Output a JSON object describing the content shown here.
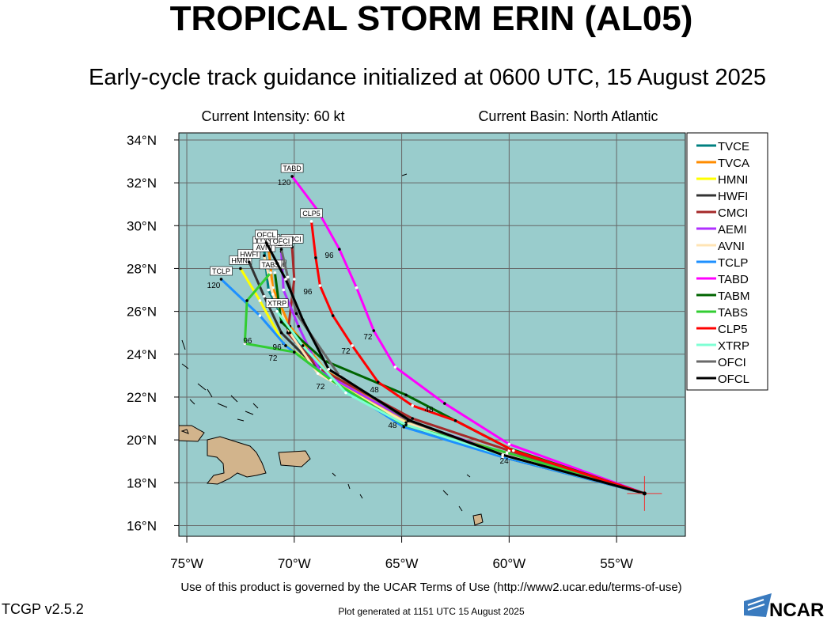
{
  "header": {
    "title": "TROPICAL STORM ERIN (AL05)",
    "subtitle": "Early-cycle track guidance initialized at 0600 UTC, 15 August 2025",
    "intensity": "Current Intensity: 60 kt",
    "basin": "Current Basin: North Atlantic"
  },
  "map": {
    "lonlim": [
      -75.37,
      -51.8
    ],
    "latlim": [
      15.5,
      34.33
    ],
    "lonticks": [
      {
        "value": -75,
        "label": "75°W"
      },
      {
        "value": -70,
        "label": "70°W"
      },
      {
        "value": -65,
        "label": "65°W"
      },
      {
        "value": -60,
        "label": "60°W"
      },
      {
        "value": -55,
        "label": "55°W"
      }
    ],
    "latticks": [
      {
        "value": 16,
        "label": "16°N"
      },
      {
        "value": 18,
        "label": "18°N"
      },
      {
        "value": 20,
        "label": "20°N"
      },
      {
        "value": 22,
        "label": "22°N"
      },
      {
        "value": 24,
        "label": "24°N"
      },
      {
        "value": 26,
        "label": "26°N"
      },
      {
        "value": 28,
        "label": "28°N"
      },
      {
        "value": 30,
        "label": "30°N"
      },
      {
        "value": 32,
        "label": "32°N"
      },
      {
        "value": 34,
        "label": "34°N"
      }
    ],
    "grid": true,
    "initial_position": {
      "lon": -53.7,
      "lat": 17.5
    },
    "tracks": [
      {
        "name": "TVCE",
        "color": "#008080",
        "lon": [
          -53.7,
          -60.2,
          -64.8,
          -68.6,
          -70.3,
          -71.2,
          -71.4
        ],
        "lat": [
          17.5,
          19.3,
          20.8,
          23.1,
          25.2,
          27.0,
          28.9
        ]
      },
      {
        "name": "TVCA",
        "color": "#ff8c00",
        "lon": [
          -53.7,
          -60.1,
          -64.7,
          -68.5,
          -70.2,
          -71.0,
          -71.2
        ],
        "lat": [
          17.5,
          19.35,
          20.85,
          23.2,
          25.3,
          27.1,
          29.0
        ]
      },
      {
        "name": "HMNI",
        "color": "#ffff00",
        "lon": [
          -53.7,
          -60.2,
          -64.7,
          -68.2,
          -70.5,
          -71.6,
          -72.5
        ],
        "lat": [
          17.5,
          19.3,
          20.8,
          22.8,
          24.5,
          26.5,
          28.0
        ]
      },
      {
        "name": "HWFI",
        "color": "#333333",
        "lon": [
          -53.7,
          -60.3,
          -64.9,
          -68.5,
          -70.6,
          -71.4,
          -72.1
        ],
        "lat": [
          17.5,
          19.2,
          20.7,
          22.9,
          25.0,
          26.7,
          28.3
        ]
      },
      {
        "name": "CMCI",
        "color": "#a52a2a",
        "lon": [
          -53.7,
          -60.0,
          -64.5,
          -68.8,
          -70.3,
          -70.0,
          -70.1
        ],
        "lat": [
          17.5,
          19.5,
          21.0,
          23.3,
          25.0,
          27.5,
          29.0
        ]
      },
      {
        "name": "AEMI",
        "color": "#b030ff",
        "lon": [
          -53.7,
          -60.1,
          -64.7,
          -68.8,
          -69.8,
          -70.5,
          -70.6
        ],
        "lat": [
          17.5,
          19.3,
          20.9,
          23.2,
          25.3,
          27.0,
          28.8
        ]
      },
      {
        "name": "AVNI",
        "color": "#ffe4b5",
        "lon": [
          -53.7,
          -60.2,
          -64.8,
          -68.9,
          -70.2,
          -71.0,
          -71.4
        ],
        "lat": [
          17.5,
          19.3,
          20.8,
          23.1,
          25.0,
          26.8,
          28.6
        ]
      },
      {
        "name": "TCLP",
        "color": "#1e90ff",
        "lon": [
          -53.7,
          -60.3,
          -64.9,
          -68.0,
          -70.4,
          -71.6,
          -73.4
        ],
        "lat": [
          17.5,
          19.2,
          20.6,
          22.6,
          24.4,
          25.8,
          27.5
        ]
      },
      {
        "name": "TABD",
        "color": "#ff00ff",
        "lon": [
          -53.7,
          -60.0,
          -63.0,
          -65.3,
          -66.3,
          -67.1,
          -67.9,
          -68.9,
          -70.1
        ],
        "lat": [
          17.5,
          19.8,
          21.7,
          23.4,
          25.1,
          27.1,
          28.9,
          30.7,
          32.3
        ]
      },
      {
        "name": "TABM",
        "color": "#006400",
        "lon": [
          -53.7,
          -60.0,
          -64.8,
          -68.6,
          -70.6,
          -70.9
        ],
        "lat": [
          17.5,
          19.6,
          22.1,
          23.7,
          25.5,
          27.8
        ]
      },
      {
        "name": "TABS",
        "color": "#32cd32",
        "lon": [
          -53.7,
          -60.1,
          -64.9,
          -68.3,
          -70.0,
          -72.3,
          -72.2,
          -71.1
        ],
        "lat": [
          17.5,
          19.4,
          20.7,
          22.8,
          24.1,
          24.5,
          26.5,
          27.8
        ]
      },
      {
        "name": "CLP5",
        "color": "#ff0000",
        "lon": [
          -53.7,
          -59.8,
          -62.5,
          -64.5,
          -66.1,
          -67.3,
          -68.2,
          -68.8,
          -69.0,
          -69.2
        ],
        "lat": [
          17.5,
          19.5,
          20.9,
          21.6,
          22.7,
          24.4,
          25.8,
          27.2,
          28.5,
          30.2
        ]
      },
      {
        "name": "XTRP",
        "color": "#7fffd4",
        "lon": [
          -53.7,
          -60.0,
          -64.8,
          -67.6,
          -69.6,
          -70.8
        ],
        "lat": [
          17.5,
          19.2,
          20.7,
          22.2,
          24.4,
          26.0
        ]
      },
      {
        "name": "OFCI",
        "color": "#696969",
        "lon": [
          -53.7,
          -60.3,
          -64.7,
          -67.9,
          -69.9,
          -70.3,
          -70.6
        ],
        "lat": [
          17.5,
          19.3,
          20.9,
          23.0,
          25.9,
          27.6,
          28.9
        ]
      },
      {
        "name": "OFCL",
        "color": "#000000",
        "lon": [
          -53.7,
          -60.3,
          -64.6,
          -68.4,
          -69.6,
          -70.4,
          -71.3
        ],
        "lat": [
          17.5,
          19.3,
          20.9,
          23.3,
          25.6,
          27.5,
          29.2
        ]
      }
    ],
    "hour_labels": [
      {
        "hour": 120,
        "lon": -70.47,
        "lat": 32.04
      },
      {
        "hour": 96,
        "lon": -68.37,
        "lat": 28.64
      },
      {
        "hour": 72,
        "lon": -66.57,
        "lat": 24.84
      },
      {
        "hour": 48,
        "lon": -63.73,
        "lat": 21.44
      },
      {
        "hour": 96,
        "lon": -69.37,
        "lat": 26.94
      },
      {
        "hour": 72,
        "lon": -67.6,
        "lat": 24.17
      },
      {
        "hour": 48,
        "lon": -66.27,
        "lat": 22.37
      },
      {
        "hour": 24,
        "lon": -60.23,
        "lat": 19.04
      },
      {
        "hour": 72,
        "lon": -70.99,
        "lat": 23.84
      },
      {
        "hour": 96,
        "lon": -72.17,
        "lat": 24.65
      },
      {
        "hour": 120,
        "lon": -73.75,
        "lat": 27.24
      },
      {
        "hour": 48,
        "lon": -65.43,
        "lat": 20.7
      },
      {
        "hour": 72,
        "lon": -68.78,
        "lat": 22.51
      },
      {
        "hour": 96,
        "lon": -70.8,
        "lat": 24.36
      }
    ]
  },
  "footer": {
    "terms": "Use of this product is governed by the UCAR Terms of Use (http://www2.ucar.edu/terms-of-use)",
    "version": "TCGP v2.5.2",
    "generated": "Plot generated at 1151 UTC   15 August 2025",
    "logo": "NCAR"
  }
}
